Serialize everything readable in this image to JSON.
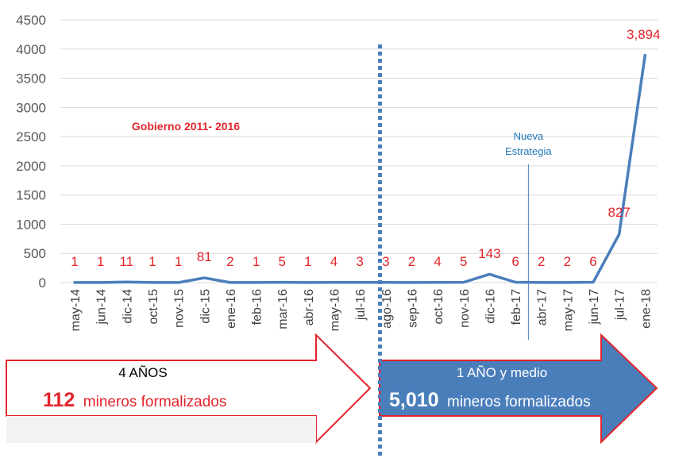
{
  "chart_data": {
    "type": "line",
    "title": "",
    "xlabel": "",
    "ylabel": "",
    "ylim": [
      0,
      4500
    ],
    "yticks": [
      "0",
      "500",
      "1000",
      "1500",
      "2000",
      "2500",
      "3000",
      "3500",
      "4000",
      "4500"
    ],
    "grid": true,
    "legend": "none",
    "categories": [
      "may-14",
      "jun-14",
      "dic-14",
      "oct-15",
      "nov-15",
      "dic-15",
      "ene-16",
      "feb-16",
      "mar-16",
      "abr-16",
      "may-16",
      "jul-16",
      "ago-16",
      "sep-16",
      "oct-16",
      "nov-16",
      "dic-16",
      "feb-17",
      "abr-17",
      "may-17",
      "jun-17",
      "jul-17",
      "ene-18"
    ],
    "values": [
      1,
      1,
      11,
      1,
      1,
      81,
      2,
      1,
      5,
      1,
      4,
      3,
      3,
      2,
      4,
      5,
      143,
      6,
      2,
      2,
      6,
      827,
      3894
    ],
    "data_labels": [
      "1",
      "1",
      "11",
      "1",
      "1",
      "81",
      "2",
      "1",
      "5",
      "1",
      "4",
      "3",
      "3",
      "2",
      "4",
      "5",
      "143",
      "6",
      "2",
      "2",
      "6",
      "827",
      "3,894"
    ],
    "annotations": {
      "gobierno": "Gobierno 2011- 2016",
      "nueva_line1": "Nueva",
      "nueva_line2": "Estrategia"
    },
    "colors": {
      "line": "#4a7ebb",
      "labels": "#e3242b",
      "grid": "#d9d9d9",
      "arrow_left_border": "#e3242b",
      "arrow_right_fill": "#4a7ebb",
      "divider": "#4a7ebb"
    }
  },
  "bands": {
    "left": {
      "title": "4 AÑOS",
      "number": "112",
      "suffix": "mineros formalizados"
    },
    "right": {
      "title": "1 AÑO y medio",
      "number": "5,010",
      "suffix": "mineros formalizados"
    }
  }
}
